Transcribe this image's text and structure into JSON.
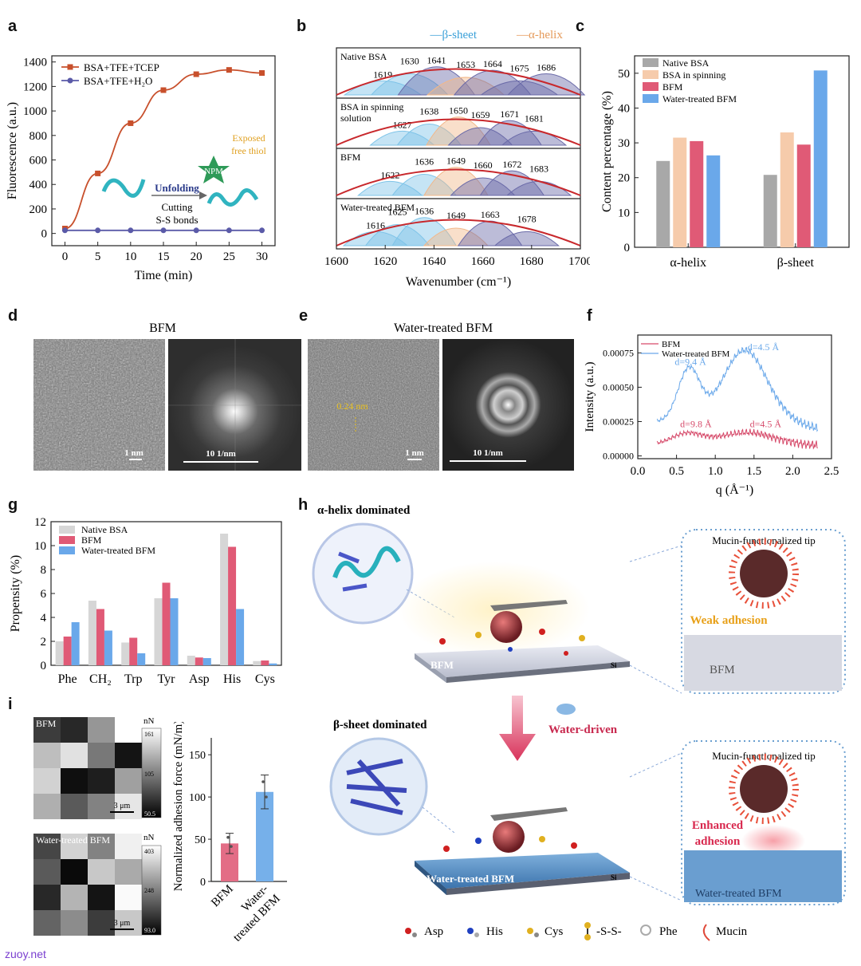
{
  "panel_labels": {
    "a": "a",
    "b": "b",
    "c": "c",
    "d": "d",
    "e": "e",
    "f": "f",
    "g": "g",
    "h": "h",
    "i": "i"
  },
  "footer": "zuoy.net",
  "chart_data": [
    {
      "id": "a",
      "type": "line",
      "x": [
        0,
        5,
        10,
        15,
        20,
        25,
        30
      ],
      "series": [
        {
          "name": "BSA+TFE+TCEP",
          "color": "#c8502c",
          "values": [
            40,
            490,
            900,
            1170,
            1300,
            1335,
            1310
          ]
        },
        {
          "name": "BSA+TFE+H₂O",
          "color": "#5a5aa8",
          "values": [
            25,
            25,
            25,
            25,
            25,
            25,
            25
          ]
        }
      ],
      "xlabel": "Time (min)",
      "ylabel": "Fluorescence (a.u.)",
      "xlim": [
        -2,
        32
      ],
      "ylim": [
        -100,
        1450
      ],
      "xticks": [
        "0",
        "5",
        "10",
        "15",
        "20",
        "25",
        "30"
      ],
      "yticks": [
        "0",
        "200",
        "400",
        "600",
        "800",
        "1000",
        "1200",
        "1400"
      ],
      "annotations": {
        "npm": "NPM",
        "unfolding": "Unfolding",
        "cutting1": "Cutting",
        "cutting2": "S-S bonds",
        "thiol1": "Exposed",
        "thiol2": "free thiol"
      }
    },
    {
      "id": "b",
      "type": "line",
      "legend": [
        "—β-sheet",
        "—α-helix"
      ],
      "xlabel": "Wavenumber (cm⁻¹)",
      "xlim": [
        1600,
        1700
      ],
      "xticks": [
        "1600",
        "1620",
        "1640",
        "1660",
        "1680",
        "1700"
      ],
      "rows": [
        {
          "name": "Native BSA",
          "peaks": [
            "1619",
            "1630",
            "1641",
            "1653",
            "1664",
            "1675",
            "1686"
          ]
        },
        {
          "name": "BSA in spinning",
          "name2": "solution",
          "peaks": [
            "1627",
            "1638",
            "1650",
            "1659",
            "1671",
            "1681"
          ]
        },
        {
          "name": "BFM",
          "peaks": [
            "1622",
            "1636",
            "1649",
            "1660",
            "1672",
            "1683"
          ]
        },
        {
          "name": "Water-treated BFM",
          "peaks": [
            "1616",
            "1625",
            "1636",
            "1649",
            "1663",
            "1678"
          ]
        }
      ]
    },
    {
      "id": "c",
      "type": "bar",
      "categories": [
        "α-helix",
        "β-sheet"
      ],
      "series": [
        {
          "name": "Native BSA",
          "color": "#a8a8a8",
          "values": [
            24.8,
            20.8
          ]
        },
        {
          "name": "BSA in spinning",
          "color": "#f6cbab",
          "values": [
            31.5,
            33.0
          ]
        },
        {
          "name": "BFM",
          "color": "#e05a76",
          "values": [
            30.5,
            29.5
          ]
        },
        {
          "name": "Water-treated BFM",
          "color": "#6aa8ea",
          "values": [
            26.4,
            50.8
          ]
        }
      ],
      "ylabel": "Content percentage (%)",
      "ylim": [
        0,
        55
      ],
      "yticks": [
        "0",
        "10",
        "20",
        "30",
        "40",
        "50"
      ]
    },
    {
      "id": "f",
      "type": "line",
      "series": [
        {
          "name": "BFM",
          "color": "#d64a6a"
        },
        {
          "name": "Water-treated BFM",
          "color": "#6aa8ea"
        }
      ],
      "xlabel": "q (Å⁻¹)",
      "ylabel": "Intensity (a.u.)",
      "xlim": [
        0,
        2.5
      ],
      "ylim": [
        -2e-05,
        0.00088
      ],
      "xticks": [
        "0.0",
        "0.5",
        "1.0",
        "1.5",
        "2.0",
        "2.5"
      ],
      "yticks": [
        "0.00000",
        "0.00025",
        "0.00050",
        "0.00075"
      ],
      "annotations": [
        "d=9.4 Å",
        "d=4.5 Å",
        "d=9.8 Å",
        "d=4.5 Å"
      ]
    },
    {
      "id": "g",
      "type": "bar",
      "categories": [
        "Phe",
        "CH₂",
        "Trp",
        "Tyr",
        "Asp",
        "His",
        "Cys"
      ],
      "series": [
        {
          "name": "Native BSA",
          "color": "#d6d6d6",
          "values": [
            2.0,
            5.4,
            1.9,
            5.6,
            0.8,
            11.0,
            0.35
          ]
        },
        {
          "name": "BFM",
          "color": "#e05a76",
          "values": [
            2.4,
            4.7,
            2.3,
            6.9,
            0.65,
            9.9,
            0.4
          ]
        },
        {
          "name": "Water-treated BFM",
          "color": "#6aa8ea",
          "values": [
            3.6,
            2.9,
            1.0,
            5.6,
            0.6,
            4.7,
            0.15
          ]
        }
      ],
      "ylabel": "Propensity (%)",
      "ylim": [
        0,
        12
      ],
      "yticks": [
        "0",
        "2",
        "4",
        "6",
        "8",
        "10",
        "12"
      ]
    },
    {
      "id": "i",
      "type": "bar",
      "categories": [
        "BFM",
        "Water-treated BFM"
      ],
      "values": [
        45,
        106
      ],
      "errors": [
        12,
        20
      ],
      "colors": [
        "#e36d86",
        "#76b0ea"
      ],
      "ylabel": "Normalized adhesion force (mN/m)",
      "ylim": [
        0,
        170
      ],
      "yticks": [
        "0",
        "50",
        "100",
        "150"
      ],
      "xlabels": [
        "BFM",
        "Water-",
        "treated BFM"
      ]
    }
  ],
  "panel_d": {
    "title": "BFM",
    "scale1": "1 nm",
    "scale2": "10 1/nm"
  },
  "panel_e": {
    "title": "Water-treated BFM",
    "scale1": "1 nm",
    "scale2": "10 1/nm",
    "spacing": "0.24 nm"
  },
  "panel_h": {
    "alpha": "α-helix dominated",
    "beta": "β-sheet dominated",
    "tip1": "Mucin-functionalized tip",
    "tip2": "Mucin-functionalized tip",
    "weak": "Weak adhesion",
    "enh1": "Enhanced",
    "enh2": "adhesion",
    "water": "Water-driven",
    "bfm": "BFM",
    "bfm2": "BFM",
    "wbfm": "Water-treated BFM",
    "wbfm2": "Water-treated BFM",
    "si1": "Si",
    "si2": "Si",
    "legend": [
      "Asp",
      "His",
      "Cys",
      "-S-S-",
      "Phe",
      "Mucin"
    ]
  },
  "panel_i_maps": {
    "map1": {
      "title": "BFM",
      "unit": "nN",
      "max": "161",
      "mid": "105",
      "min": "50.5",
      "scale": "3 μm"
    },
    "map2": {
      "title": "Water-treated BFM",
      "unit": "nN",
      "max": "403",
      "mid": "248",
      "min": "93.0",
      "scale": "3 μm"
    }
  }
}
